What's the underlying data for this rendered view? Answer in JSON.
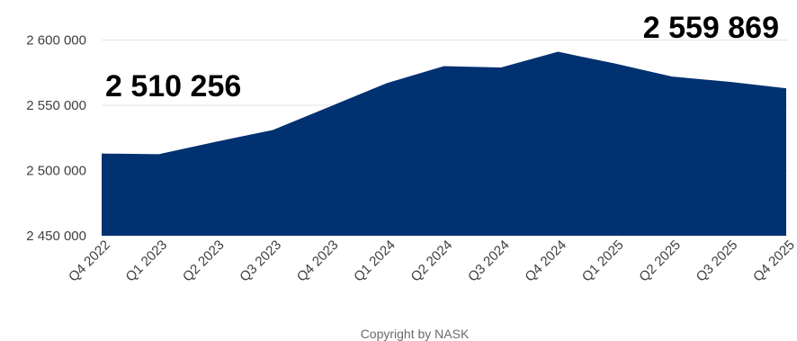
{
  "colors": {
    "area_fill": "#003170",
    "grid": "#e3e3e3",
    "axis_text": "#404040",
    "callout_text": "#000000"
  },
  "copyright": "Copyright by NASK",
  "chart_data": {
    "type": "area",
    "categories": [
      "Q4 2022",
      "Q1 2023",
      "Q2 2023",
      "Q3 2023",
      "Q4 2023",
      "Q1 2024",
      "Q2 2024",
      "Q3 2024",
      "Q4 2024",
      "Q1 2025",
      "Q2 2025",
      "Q3 2025",
      "Q4 2025"
    ],
    "values": [
      2513000,
      2512500,
      2522000,
      2531000,
      2549000,
      2567000,
      2580000,
      2579000,
      2591000,
      2582000,
      2572000,
      2568000,
      2563000
    ],
    "ylim": [
      2450000,
      2610000
    ],
    "yticks": [
      2450000,
      2500000,
      2550000,
      2600000
    ],
    "ytick_labels": [
      "2 450 000",
      "2 500 000",
      "2 550 000",
      "2 600 000"
    ],
    "grid": true,
    "legend": "none",
    "annotations": [
      {
        "text": "2 510 256",
        "anchor": "left"
      },
      {
        "text": "2 559 869",
        "anchor": "right"
      }
    ]
  }
}
